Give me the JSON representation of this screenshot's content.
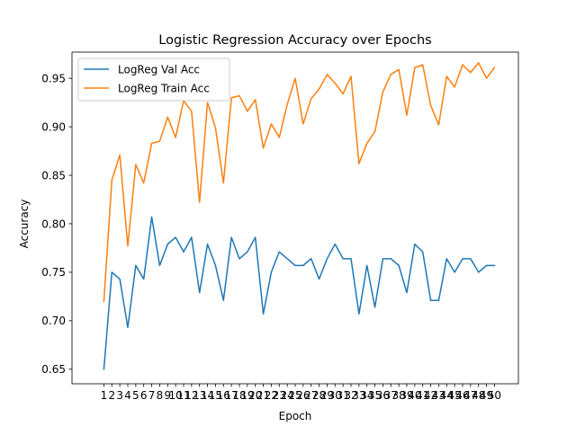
{
  "chart_data": {
    "type": "line",
    "title": "Logistic Regression Accuracy over Epochs",
    "xlabel": "Epoch",
    "ylabel": "Accuracy",
    "x": [
      1,
      2,
      3,
      4,
      5,
      6,
      7,
      8,
      9,
      10,
      11,
      12,
      13,
      14,
      15,
      16,
      17,
      18,
      19,
      20,
      21,
      22,
      23,
      24,
      25,
      26,
      27,
      28,
      29,
      30,
      31,
      32,
      33,
      34,
      35,
      36,
      37,
      38,
      39,
      40,
      41,
      42,
      43,
      44,
      45,
      46,
      47,
      48,
      49,
      50
    ],
    "xlim": [
      -3.0,
      53.0
    ],
    "ylim": [
      0.635,
      0.977
    ],
    "yticks": [
      0.65,
      0.7,
      0.75,
      0.8,
      0.85,
      0.9,
      0.95
    ],
    "ytick_labels": [
      "0.65",
      "0.70",
      "0.75",
      "0.80",
      "0.85",
      "0.90",
      "0.95"
    ],
    "grid": false,
    "legend_position": "top-left",
    "series": [
      {
        "name": "LogReg Val Acc",
        "color": "#1f77b4",
        "values": [
          0.65,
          0.75,
          0.743,
          0.693,
          0.757,
          0.743,
          0.807,
          0.757,
          0.779,
          0.786,
          0.771,
          0.786,
          0.729,
          0.779,
          0.757,
          0.721,
          0.786,
          0.764,
          0.771,
          0.786,
          0.707,
          0.75,
          0.771,
          0.764,
          0.757,
          0.757,
          0.764,
          0.743,
          0.764,
          0.779,
          0.764,
          0.764,
          0.707,
          0.757,
          0.714,
          0.764,
          0.764,
          0.757,
          0.729,
          0.779,
          0.771,
          0.721,
          0.721,
          0.764,
          0.75,
          0.764,
          0.764,
          0.75,
          0.757,
          0.757
        ]
      },
      {
        "name": "LogReg Train Acc",
        "color": "#ff7f0e",
        "values": [
          0.72,
          0.845,
          0.871,
          0.777,
          0.861,
          0.842,
          0.883,
          0.885,
          0.91,
          0.889,
          0.927,
          0.916,
          0.822,
          0.925,
          0.899,
          0.842,
          0.93,
          0.932,
          0.916,
          0.928,
          0.878,
          0.903,
          0.889,
          0.923,
          0.95,
          0.903,
          0.929,
          0.939,
          0.954,
          0.945,
          0.934,
          0.952,
          0.862,
          0.883,
          0.895,
          0.936,
          0.954,
          0.959,
          0.912,
          0.961,
          0.964,
          0.922,
          0.902,
          0.952,
          0.941,
          0.964,
          0.956,
          0.966,
          0.95,
          0.961
        ]
      }
    ]
  }
}
